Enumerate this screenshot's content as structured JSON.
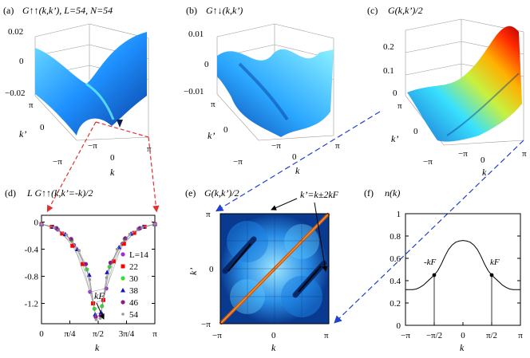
{
  "panels": {
    "a": {
      "tag": "(a)",
      "title": "G↑↑(k,k’), L=54, N=54",
      "zticks": [
        "0.02",
        "0",
        "−0.02"
      ],
      "kp_ticks": [
        "π",
        "0",
        "−π"
      ],
      "k_ticks": [
        "−π",
        "0",
        "π"
      ],
      "xlabel": "k",
      "ylabel": "k’"
    },
    "b": {
      "tag": "(b)",
      "title": "G↑↓(k,k’)",
      "zticks": [
        "0.01",
        "0",
        "−0.01"
      ],
      "kp_ticks": [
        "π",
        "0",
        "−π"
      ],
      "k_ticks": [
        "−π",
        "0",
        "π"
      ],
      "xlabel": "k",
      "ylabel": "k’"
    },
    "c": {
      "tag": "(c)",
      "title": "G(k,k’)/2",
      "zticks": [
        "0.2",
        "0.1",
        "0"
      ],
      "kp_ticks": [
        "π",
        "0",
        "−π"
      ],
      "k_ticks": [
        "−π",
        "0",
        "π"
      ],
      "xlabel": "k",
      "ylabel": "k’"
    },
    "d": {
      "tag": "(d)",
      "title": "L G↑↑(k,k’=-k)/2",
      "xlabel": "k",
      "annotation": "kF"
    },
    "e": {
      "tag": "(e)",
      "title": "G(k,k’)/2",
      "xlabel": "k",
      "ylabel": "k’",
      "annotation": "k’=k±2kF",
      "xticks": [
        "−π",
        "0",
        "π"
      ],
      "yticks": [
        "π",
        "0",
        "−π"
      ]
    },
    "f": {
      "tag": "(f)",
      "title": "n(k)",
      "xlabel": "k",
      "marker_left": "-kF",
      "marker_right": "kF"
    }
  },
  "chart_data": [
    {
      "panel": "d",
      "type": "scatter",
      "title": "L G↑↑(k,k’=-k)/2",
      "xlabel": "k",
      "ylabel": "",
      "xlim": [
        0,
        3.1416
      ],
      "ylim": [
        -1.5,
        0.1
      ],
      "xtick_labels": [
        "0",
        "π/4",
        "π/2",
        "3π/4",
        "π"
      ],
      "ytick_labels": [
        "0",
        "-0.4",
        "-0.8",
        "-1.2"
      ],
      "legend_title": "L",
      "series": [
        {
          "name": "L=14",
          "color": "#9b30d9",
          "marker": "circle",
          "x": [
            0.0,
            0.449,
            0.898,
            1.346,
            1.795,
            2.244,
            2.693,
            3.142
          ],
          "y": [
            -0.03,
            -0.11,
            -0.34,
            -1.03,
            -0.98,
            -0.32,
            -0.1,
            -0.03
          ]
        },
        {
          "name": "22",
          "color": "#ff0000",
          "marker": "square",
          "x": [
            0.0,
            0.286,
            0.571,
            0.857,
            1.142,
            1.428,
            1.714,
            1.999,
            2.285,
            2.57,
            2.856,
            3.142
          ],
          "y": [
            -0.03,
            -0.07,
            -0.17,
            -0.35,
            -0.62,
            -1.2,
            -1.15,
            -0.58,
            -0.32,
            -0.16,
            -0.07,
            -0.03
          ]
        },
        {
          "name": "30",
          "color": "#33dd33",
          "marker": "circle",
          "x": [
            0.0,
            0.419,
            0.838,
            1.257,
            1.466,
            1.676,
            1.885,
            2.304,
            2.723,
            3.142
          ],
          "y": [
            -0.03,
            -0.09,
            -0.27,
            -0.7,
            -1.28,
            -1.24,
            -0.66,
            -0.25,
            -0.09,
            -0.03
          ]
        },
        {
          "name": "38",
          "color": "#1010cc",
          "marker": "triangle",
          "x": [
            0.0,
            0.331,
            0.661,
            0.992,
            1.323,
            1.488,
            1.653,
            1.819,
            2.15,
            2.48,
            2.811,
            3.142
          ],
          "y": [
            -0.03,
            -0.07,
            -0.18,
            -0.4,
            -0.78,
            -1.36,
            -1.33,
            -0.74,
            -0.37,
            -0.17,
            -0.07,
            -0.03
          ]
        },
        {
          "name": "46",
          "color": "#8b1a8b",
          "marker": "circle",
          "x": [
            0.0,
            0.41,
            0.82,
            1.229,
            1.503,
            1.639,
            1.912,
            2.322,
            2.732,
            3.142
          ],
          "y": [
            -0.03,
            -0.09,
            -0.25,
            -0.62,
            -1.4,
            -1.38,
            -0.6,
            -0.24,
            -0.09,
            -0.03
          ]
        },
        {
          "name": "54",
          "color": "#999999",
          "marker": "dot",
          "x": [
            0.0,
            0.349,
            0.698,
            1.047,
            1.338,
            1.513,
            1.629,
            1.803,
            2.094,
            2.443,
            2.793,
            3.142
          ],
          "y": [
            -0.03,
            -0.08,
            -0.19,
            -0.42,
            -0.85,
            -1.44,
            -1.42,
            -0.82,
            -0.4,
            -0.18,
            -0.08,
            -0.03
          ]
        }
      ]
    },
    {
      "panel": "e",
      "type": "heatmap",
      "title": "G(k,k’)/2",
      "xlabel": "k",
      "ylabel": "k’",
      "xlim": [
        -3.1416,
        3.1416
      ],
      "ylim": [
        -3.1416,
        3.1416
      ],
      "xtick_labels": [
        "−π",
        "0",
        "π"
      ],
      "ytick_labels": [
        "π",
        "0",
        "−π"
      ],
      "diagonal_line": "k’=k",
      "dark_ridges": "k’=k±2kF",
      "colors": {
        "line": "#d9520f",
        "high": "#ffffff",
        "low": "#0a2a7a"
      }
    },
    {
      "panel": "f",
      "type": "line",
      "title": "n(k)",
      "xlabel": "k",
      "ylabel": "",
      "xlim": [
        -3.1416,
        3.1416
      ],
      "ylim": [
        0,
        1
      ],
      "xtick_labels": [
        "−π",
        "−π/2",
        "0",
        "π/2",
        "π"
      ],
      "ytick_labels": [
        "0",
        "0.2",
        "0.4",
        "0.6",
        "0.8",
        "1"
      ],
      "series": [
        {
          "name": "n(k)",
          "x": [
            -3.142,
            -2.945,
            -2.749,
            -2.552,
            -2.356,
            -2.16,
            -1.963,
            -1.767,
            -1.571,
            -1.374,
            -1.178,
            -0.982,
            -0.785,
            -0.589,
            -0.393,
            -0.196,
            0.0,
            0.196,
            0.393,
            0.589,
            0.785,
            0.982,
            1.178,
            1.374,
            1.571,
            1.767,
            1.963,
            2.16,
            2.356,
            2.552,
            2.749,
            2.945,
            3.142
          ],
          "y": [
            0.32,
            0.32,
            0.32,
            0.325,
            0.34,
            0.36,
            0.39,
            0.42,
            0.45,
            0.49,
            0.55,
            0.62,
            0.68,
            0.72,
            0.745,
            0.755,
            0.76,
            0.755,
            0.745,
            0.72,
            0.68,
            0.62,
            0.55,
            0.49,
            0.45,
            0.42,
            0.39,
            0.36,
            0.34,
            0.325,
            0.32,
            0.32,
            0.32
          ]
        }
      ],
      "markers": [
        {
          "label": "-kF",
          "x": -1.571,
          "y": 0.45
        },
        {
          "label": "kF",
          "x": 1.571,
          "y": 0.45
        }
      ]
    }
  ]
}
